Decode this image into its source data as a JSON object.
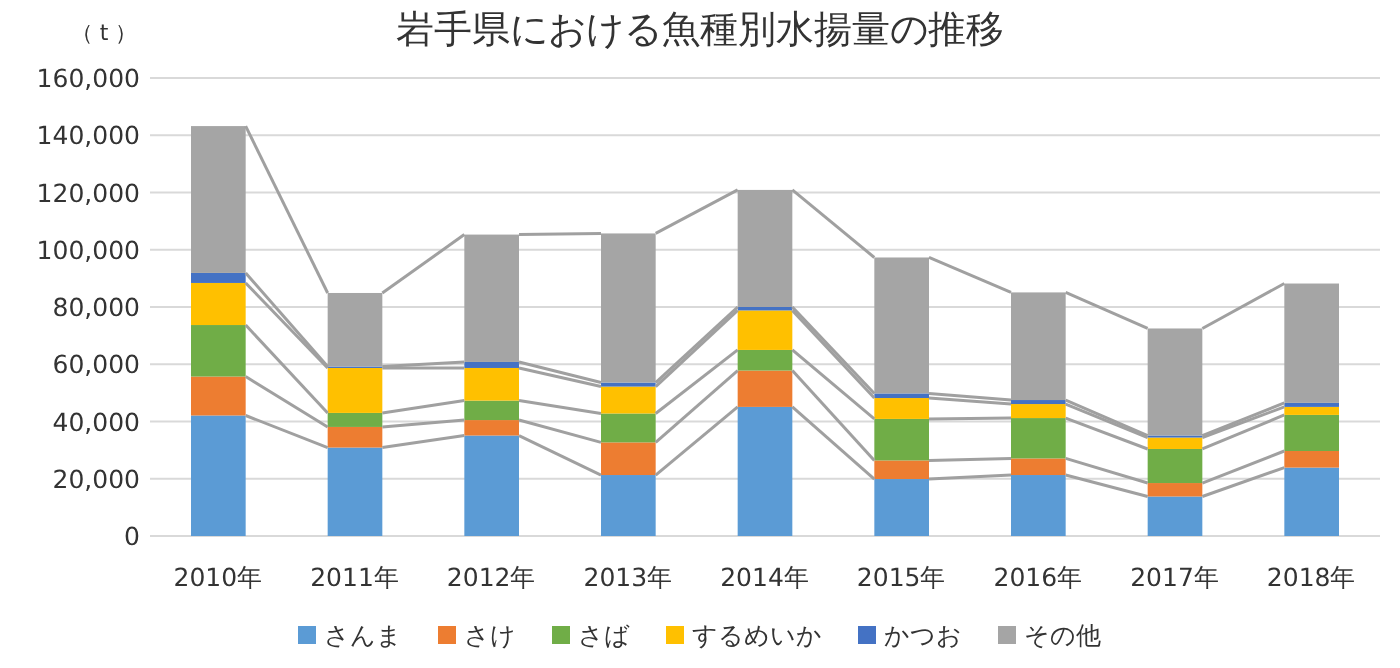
{
  "chart_data": {
    "type": "bar",
    "stacked": true,
    "title": "岩手県における魚種別水揚量の推移",
    "ylabel": "（ t ）",
    "categories": [
      "2010年",
      "2011年",
      "2012年",
      "2013年",
      "2014年",
      "2015年",
      "2016年",
      "2017年",
      "2018年"
    ],
    "series": [
      {
        "name": "さんま",
        "color": "#5b9bd5",
        "values": [
          42100,
          30900,
          35100,
          21300,
          45100,
          19900,
          21300,
          13800,
          23900
        ]
      },
      {
        "name": "さけ",
        "color": "#ed7d31",
        "values": [
          13600,
          7200,
          5400,
          11400,
          12700,
          6500,
          5800,
          4700,
          5800
        ]
      },
      {
        "name": "さば",
        "color": "#70ad47",
        "values": [
          18000,
          4900,
          6800,
          10100,
          7200,
          14500,
          14100,
          11900,
          12600
        ]
      },
      {
        "name": "するめいか",
        "color": "#ffc000",
        "values": [
          14700,
          15700,
          11400,
          9400,
          13800,
          7300,
          4900,
          4000,
          2800
        ]
      },
      {
        "name": "かつお",
        "color": "#4472c4",
        "values": [
          3500,
          500,
          2100,
          1400,
          1200,
          1600,
          1400,
          700,
          1400
        ]
      },
      {
        "name": "その他",
        "color": "#a5a5a5",
        "values": [
          51300,
          25700,
          44500,
          52100,
          40900,
          47500,
          37600,
          37400,
          41700
        ]
      }
    ],
    "ylim": [
      0,
      160000
    ],
    "yticks": [
      {
        "value": 0,
        "label": "0"
      },
      {
        "value": 20000,
        "label": "20,000"
      },
      {
        "value": 40000,
        "label": "40,000"
      },
      {
        "value": 60000,
        "label": "60,000"
      },
      {
        "value": 80000,
        "label": "80,000"
      },
      {
        "value": 100000,
        "label": "100,000"
      },
      {
        "value": 120000,
        "label": "120,000"
      },
      {
        "value": 140000,
        "label": "140,000"
      },
      {
        "value": 160000,
        "label": "160,000"
      }
    ],
    "grid": "y",
    "legend": "bottom"
  }
}
